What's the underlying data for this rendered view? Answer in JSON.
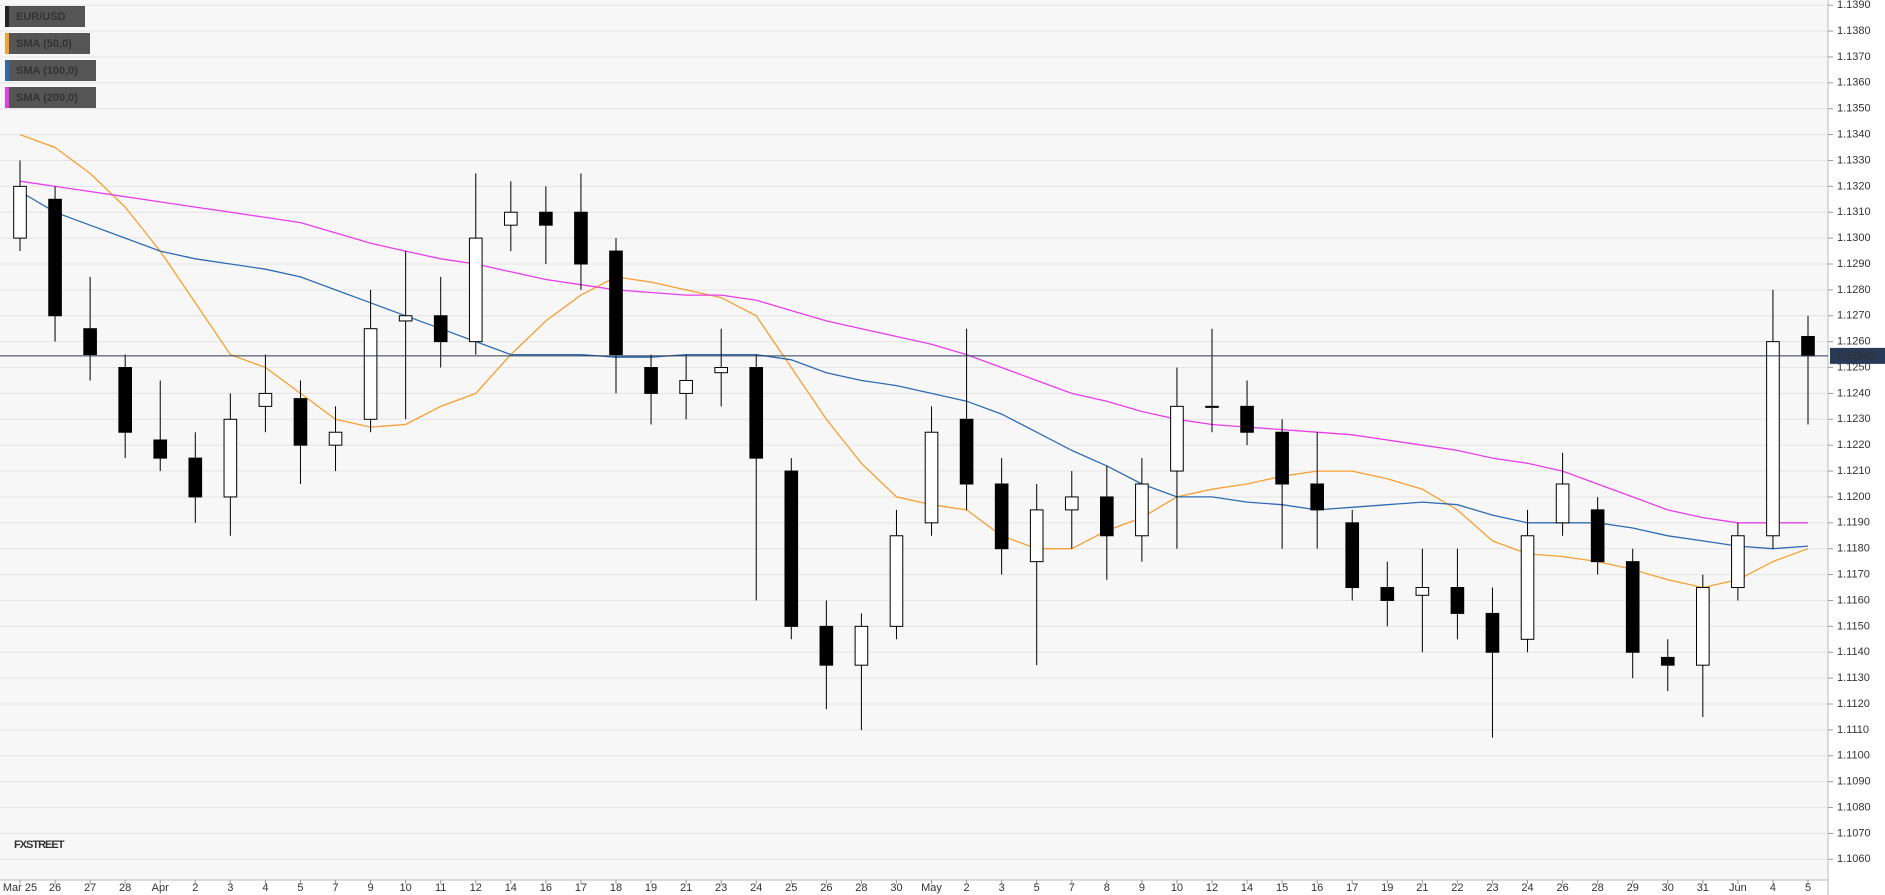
{
  "chart_data": {
    "type": "candlestick",
    "categories": [
      "Mar 25",
      "26",
      "27",
      "28",
      "Apr",
      "2",
      "3",
      "4",
      "5",
      "7",
      "9",
      "10",
      "11",
      "12",
      "14",
      "16",
      "17",
      "18",
      "19",
      "21",
      "23",
      "24",
      "25",
      "26",
      "28",
      "30",
      "May",
      "2",
      "3",
      "5",
      "7",
      "8",
      "9",
      "10",
      "12",
      "14",
      "15",
      "16",
      "17",
      "19",
      "21",
      "22",
      "23",
      "24",
      "26",
      "28",
      "29",
      "30",
      "31",
      "Jun",
      "4",
      "5"
    ],
    "series": [
      {
        "name": "EUR/USD",
        "type": "candlestick",
        "color": "#000000",
        "up_color": "#ffffff",
        "down_color": "#000000",
        "open": [
          1.13,
          1.1315,
          1.1265,
          1.125,
          1.1222,
          1.1215,
          1.12,
          1.1235,
          1.1238,
          1.122,
          1.123,
          1.1268,
          1.127,
          1.126,
          1.1305,
          1.131,
          1.131,
          1.1295,
          1.125,
          1.124,
          1.1248,
          1.125,
          1.121,
          1.115,
          1.1135,
          1.115,
          1.119,
          1.123,
          1.1205,
          1.1175,
          1.1195,
          1.12,
          1.1185,
          1.121,
          1.1235,
          1.1235,
          1.1225,
          1.1205,
          1.119,
          1.1165,
          1.1162,
          1.1165,
          1.1155,
          1.1145,
          1.119,
          1.1195,
          1.1175,
          1.1138,
          1.1135,
          1.1165,
          1.1185,
          1.1262
        ],
        "high": [
          1.133,
          1.132,
          1.1285,
          1.1255,
          1.1245,
          1.1225,
          1.124,
          1.1255,
          1.1245,
          1.1235,
          1.128,
          1.1295,
          1.1285,
          1.1325,
          1.1322,
          1.132,
          1.1325,
          1.13,
          1.1255,
          1.1255,
          1.1265,
          1.1255,
          1.1215,
          1.116,
          1.1155,
          1.1195,
          1.1235,
          1.1265,
          1.1215,
          1.1205,
          1.121,
          1.1212,
          1.1215,
          1.125,
          1.1265,
          1.1245,
          1.123,
          1.1225,
          1.1195,
          1.1175,
          1.118,
          1.118,
          1.1165,
          1.1195,
          1.1217,
          1.12,
          1.118,
          1.1145,
          1.117,
          1.119,
          1.128,
          1.127
        ],
        "low": [
          1.1295,
          1.126,
          1.1245,
          1.1215,
          1.121,
          1.119,
          1.1185,
          1.1225,
          1.1205,
          1.121,
          1.1225,
          1.123,
          1.125,
          1.1255,
          1.1295,
          1.129,
          1.128,
          1.124,
          1.1228,
          1.123,
          1.1235,
          1.116,
          1.1145,
          1.1118,
          1.111,
          1.1145,
          1.1185,
          1.1195,
          1.117,
          1.1135,
          1.118,
          1.1168,
          1.1175,
          1.118,
          1.1225,
          1.122,
          1.118,
          1.118,
          1.116,
          1.115,
          1.114,
          1.1145,
          1.1107,
          1.114,
          1.1185,
          1.117,
          1.113,
          1.1125,
          1.1115,
          1.116,
          1.118,
          1.1228
        ],
        "close": [
          1.132,
          1.127,
          1.1255,
          1.1225,
          1.1215,
          1.12,
          1.123,
          1.124,
          1.122,
          1.1225,
          1.1265,
          1.127,
          1.126,
          1.13,
          1.131,
          1.1305,
          1.129,
          1.1255,
          1.124,
          1.1245,
          1.125,
          1.1215,
          1.115,
          1.1135,
          1.115,
          1.1185,
          1.1225,
          1.1205,
          1.118,
          1.1195,
          1.12,
          1.1185,
          1.1205,
          1.1235,
          1.1235,
          1.1225,
          1.1205,
          1.1195,
          1.1165,
          1.116,
          1.1165,
          1.1155,
          1.114,
          1.1185,
          1.1205,
          1.1175,
          1.114,
          1.1135,
          1.1165,
          1.1185,
          1.126,
          1.12545
        ]
      },
      {
        "name": "SMA (50,0)",
        "type": "line",
        "color": "#f5a031",
        "values": [
          1.134,
          1.1335,
          1.1325,
          1.1312,
          1.1295,
          1.1275,
          1.1255,
          1.125,
          1.124,
          1.123,
          1.1227,
          1.1228,
          1.1235,
          1.124,
          1.1255,
          1.1268,
          1.1278,
          1.1285,
          1.1283,
          1.128,
          1.1277,
          1.127,
          1.125,
          1.123,
          1.1213,
          1.12,
          1.1197,
          1.1195,
          1.1185,
          1.118,
          1.118,
          1.1187,
          1.1192,
          1.12,
          1.1203,
          1.1205,
          1.1208,
          1.121,
          1.121,
          1.1207,
          1.1203,
          1.1195,
          1.1183,
          1.1178,
          1.1177,
          1.1175,
          1.1172,
          1.1168,
          1.1165,
          1.1168,
          1.1175,
          1.118
        ]
      },
      {
        "name": "SMA (100,0)",
        "type": "line",
        "color": "#2e6bb0",
        "values": [
          1.1318,
          1.131,
          1.1305,
          1.13,
          1.1295,
          1.1292,
          1.129,
          1.1288,
          1.1285,
          1.128,
          1.1275,
          1.127,
          1.1265,
          1.126,
          1.1255,
          1.1255,
          1.1255,
          1.1254,
          1.1254,
          1.1255,
          1.1255,
          1.1255,
          1.1253,
          1.1248,
          1.1245,
          1.1243,
          1.124,
          1.1237,
          1.1232,
          1.1225,
          1.1218,
          1.1212,
          1.1205,
          1.12,
          1.12,
          1.1198,
          1.1197,
          1.1195,
          1.1196,
          1.1197,
          1.1198,
          1.1197,
          1.1193,
          1.119,
          1.119,
          1.119,
          1.1188,
          1.1185,
          1.1183,
          1.1181,
          1.118,
          1.1181
        ]
      },
      {
        "name": "SMA (200,0)",
        "type": "line",
        "color": "#e83ee8",
        "values": [
          1.1322,
          1.132,
          1.1318,
          1.1316,
          1.1314,
          1.1312,
          1.131,
          1.1308,
          1.1306,
          1.1302,
          1.1298,
          1.1295,
          1.1292,
          1.129,
          1.1287,
          1.1284,
          1.1282,
          1.128,
          1.1279,
          1.1278,
          1.1278,
          1.1276,
          1.1272,
          1.1268,
          1.1265,
          1.1262,
          1.1259,
          1.1255,
          1.125,
          1.1245,
          1.124,
          1.1237,
          1.1233,
          1.123,
          1.1228,
          1.1227,
          1.1226,
          1.1225,
          1.1224,
          1.1222,
          1.122,
          1.1218,
          1.1215,
          1.1213,
          1.121,
          1.1205,
          1.12,
          1.1195,
          1.1192,
          1.119,
          1.119,
          1.119
        ]
      }
    ],
    "ylim": [
      1.1052,
      1.1392
    ],
    "yticks": [
      {
        "value": 1.106,
        "label": "1.1060"
      },
      {
        "value": 1.107,
        "label": "1.1070"
      },
      {
        "value": 1.108,
        "label": "1.1080"
      },
      {
        "value": 1.109,
        "label": "1.1090"
      },
      {
        "value": 1.11,
        "label": "1.1100"
      },
      {
        "value": 1.111,
        "label": "1.1110"
      },
      {
        "value": 1.112,
        "label": "1.1120"
      },
      {
        "value": 1.113,
        "label": "1.1130"
      },
      {
        "value": 1.114,
        "label": "1.1140"
      },
      {
        "value": 1.115,
        "label": "1.1150"
      },
      {
        "value": 1.116,
        "label": "1.1160"
      },
      {
        "value": 1.117,
        "label": "1.1170"
      },
      {
        "value": 1.118,
        "label": "1.1180"
      },
      {
        "value": 1.119,
        "label": "1.1190"
      },
      {
        "value": 1.12,
        "label": "1.1200"
      },
      {
        "value": 1.121,
        "label": "1.1210"
      },
      {
        "value": 1.122,
        "label": "1.1220"
      },
      {
        "value": 1.123,
        "label": "1.1230"
      },
      {
        "value": 1.124,
        "label": "1.1240"
      },
      {
        "value": 1.125,
        "label": "1.1250"
      },
      {
        "value": 1.126,
        "label": "1.1260"
      },
      {
        "value": 1.127,
        "label": "1.1270"
      },
      {
        "value": 1.128,
        "label": "1.1280"
      },
      {
        "value": 1.129,
        "label": "1.1290"
      },
      {
        "value": 1.13,
        "label": "1.1300"
      },
      {
        "value": 1.131,
        "label": "1.1310"
      },
      {
        "value": 1.132,
        "label": "1.1320"
      },
      {
        "value": 1.133,
        "label": "1.1330"
      },
      {
        "value": 1.134,
        "label": "1.1340"
      },
      {
        "value": 1.135,
        "label": "1.1350"
      },
      {
        "value": 1.136,
        "label": "1.1360"
      },
      {
        "value": 1.137,
        "label": "1.1370"
      },
      {
        "value": 1.138,
        "label": "1.1380"
      },
      {
        "value": 1.139,
        "label": "1.1390"
      }
    ],
    "last_price": 1.12545,
    "last_price_color": "#283a56",
    "watermark": "FXSTREET",
    "legend": "upper left",
    "grid": true
  }
}
